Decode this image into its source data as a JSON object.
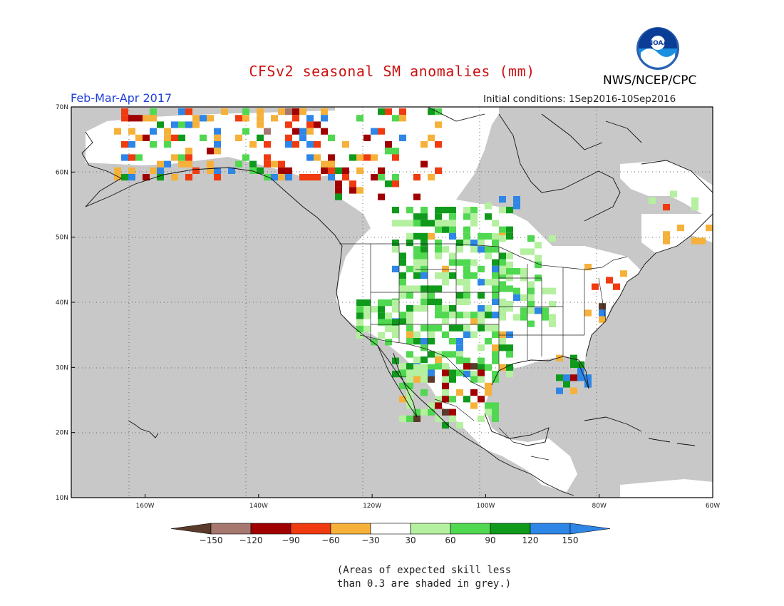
{
  "title": "CFSv2 seasonal SM anomalies (mm)",
  "organization": "NWS/NCEP/CPC",
  "logo": {
    "text": "NOAA",
    "icon": "noaa-logo-icon"
  },
  "period": "Feb-Mar-Apr 2017",
  "initial_conditions": "Initial conditions: 1Sep2016-10Sep2016",
  "map": {
    "lon_range": [
      -173,
      -60
    ],
    "lat_range": [
      10,
      70
    ],
    "ocean_color": "#c8c8c8",
    "lat_labels": [
      "70N",
      "60N",
      "50N",
      "40N",
      "30N",
      "20N",
      "10N"
    ],
    "lon_labels": [
      "160W",
      "140W",
      "120W",
      "100W",
      "80W",
      "60W"
    ]
  },
  "colorbar": {
    "colors": [
      "#5a3a2a",
      "#a67870",
      "#a00000",
      "#f03a10",
      "#f5b13a",
      "#ffffff",
      "#b4f0a0",
      "#50d850",
      "#0f9a1c",
      "#2e86e6",
      "#2e86e6"
    ],
    "labels": [
      "-150",
      "-120",
      "-90",
      "-60",
      "-30",
      "30",
      "60",
      "90",
      "120",
      "150"
    ]
  },
  "note": {
    "line1": "(Areas of expected skill less",
    "line2": "than 0.3 are shaded in grey.)"
  }
}
